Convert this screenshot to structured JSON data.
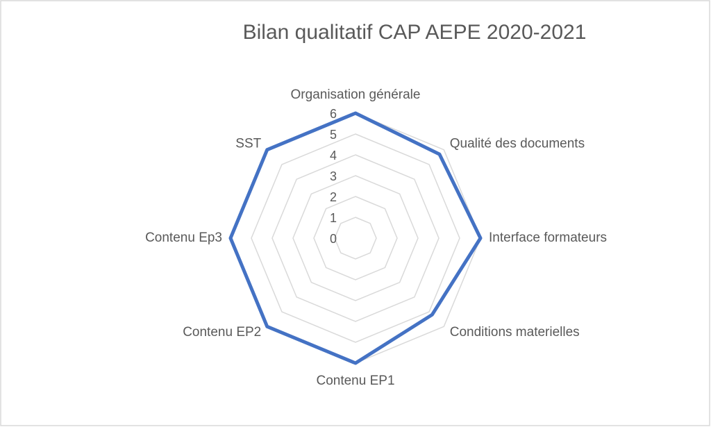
{
  "chart_data": {
    "type": "radar",
    "title": "Bilan qualitatif CAP AEPE 2020-2021",
    "categories": [
      "Organisation générale",
      "Qualité des documents",
      "Interface formateurs",
      "Conditions materielles",
      "Contenu EP1",
      "Contenu EP2",
      "Contenu Ep3",
      "SST"
    ],
    "values": [
      6,
      5.7,
      6,
      5.2,
      6,
      6,
      6,
      6
    ],
    "color": "#4472c4",
    "ylim": [
      0,
      6
    ],
    "yticks": [
      0,
      1,
      2,
      3,
      4,
      5,
      6
    ],
    "grid": true
  }
}
